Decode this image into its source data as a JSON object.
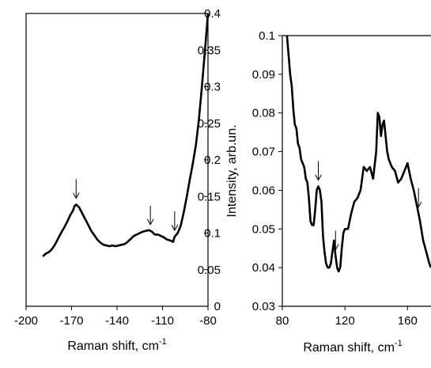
{
  "chart_data": [
    {
      "type": "line",
      "title": "",
      "xlabel": "Raman shift, cm",
      "xlabel_superscript": "-1",
      "ylabel": "",
      "xlim": [
        -200,
        -80
      ],
      "ylim": [
        0,
        0.4
      ],
      "x_tick_labels": [
        "-200",
        "-170",
        "-140",
        "-110",
        "-80"
      ],
      "x_tick_values": [
        -200,
        -170,
        -140,
        -110,
        -80
      ],
      "y_tick_labels": [
        "0",
        "0.05",
        "0.1",
        "0.15",
        "0.2",
        "0.25",
        "0.3",
        "0.35",
        "0.4"
      ],
      "y_tick_values": [
        0,
        0.05,
        0.1,
        0.15,
        0.2,
        0.25,
        0.3,
        0.35,
        0.4
      ],
      "y_axis_side": "right",
      "grid": false,
      "series": [
        {
          "x": [
            -189,
            -187,
            -185,
            -183,
            -181,
            -179,
            -177,
            -175,
            -173,
            -171,
            -169,
            -168,
            -167,
            -165,
            -163,
            -161,
            -159,
            -157,
            -155,
            -153,
            -151,
            -149,
            -147,
            -145,
            -143,
            -141,
            -139,
            -137,
            -135,
            -133,
            -131,
            -129,
            -127,
            -125,
            -123,
            -121,
            -119,
            -117,
            -115,
            -113,
            -111,
            -109,
            -107,
            -105,
            -103,
            -102,
            -100,
            -98,
            -96,
            -94,
            -92,
            -90,
            -88,
            -86,
            -84,
            -82,
            -80
          ],
          "y": [
            0.068,
            0.072,
            0.074,
            0.078,
            0.084,
            0.092,
            0.1,
            0.107,
            0.115,
            0.124,
            0.131,
            0.137,
            0.139,
            0.135,
            0.127,
            0.119,
            0.111,
            0.103,
            0.097,
            0.091,
            0.087,
            0.084,
            0.083,
            0.082,
            0.083,
            0.082,
            0.083,
            0.084,
            0.085,
            0.088,
            0.092,
            0.096,
            0.098,
            0.1,
            0.102,
            0.103,
            0.104,
            0.102,
            0.098,
            0.098,
            0.096,
            0.094,
            0.091,
            0.09,
            0.088,
            0.095,
            0.1,
            0.11,
            0.128,
            0.15,
            0.173,
            0.195,
            0.22,
            0.255,
            0.3,
            0.35,
            0.4
          ]
        }
      ],
      "arrows_at_x": [
        -167,
        -118,
        -102
      ]
    },
    {
      "type": "line",
      "title": "",
      "xlabel": "Raman shift, cm",
      "xlabel_superscript": "-1",
      "ylabel": "Intensity, arb.un.",
      "xlim": [
        80,
        175
      ],
      "ylim": [
        0.03,
        0.1
      ],
      "x_tick_labels": [
        "80",
        "120",
        "160"
      ],
      "x_tick_values": [
        80,
        120,
        160
      ],
      "y_tick_labels": [
        "0.03",
        "0.04",
        "0.05",
        "0.06",
        "0.07",
        "0.08",
        "0.09",
        "0.1"
      ],
      "y_tick_values": [
        0.03,
        0.04,
        0.05,
        0.06,
        0.07,
        0.08,
        0.09,
        0.1
      ],
      "y_axis_side": "left",
      "grid": false,
      "series": [
        {
          "x": [
            83,
            84,
            85,
            86,
            87,
            88,
            89,
            90,
            91,
            92,
            93,
            94,
            95,
            96,
            97,
            98,
            99,
            100,
            101,
            102,
            103,
            104,
            105,
            106,
            107,
            108,
            109,
            110,
            111,
            112,
            113,
            114,
            115,
            116,
            117,
            118,
            119,
            120,
            122,
            124,
            126,
            128,
            130,
            132,
            134,
            136,
            138,
            140,
            141,
            142,
            143,
            144,
            145,
            146,
            147,
            148,
            150,
            152,
            154,
            156,
            158,
            160,
            162,
            164,
            166,
            168,
            170,
            172,
            174,
            175
          ],
          "y": [
            0.1,
            0.095,
            0.09,
            0.087,
            0.081,
            0.077,
            0.076,
            0.072,
            0.071,
            0.068,
            0.067,
            0.066,
            0.063,
            0.062,
            0.058,
            0.052,
            0.051,
            0.051,
            0.055,
            0.06,
            0.061,
            0.06,
            0.057,
            0.048,
            0.044,
            0.041,
            0.04,
            0.04,
            0.041,
            0.044,
            0.047,
            0.043,
            0.04,
            0.039,
            0.04,
            0.045,
            0.049,
            0.05,
            0.05,
            0.054,
            0.057,
            0.058,
            0.06,
            0.066,
            0.065,
            0.066,
            0.063,
            0.07,
            0.08,
            0.079,
            0.074,
            0.077,
            0.078,
            0.074,
            0.07,
            0.068,
            0.066,
            0.065,
            0.062,
            0.063,
            0.065,
            0.067,
            0.063,
            0.06,
            0.056,
            0.052,
            0.047,
            0.044,
            0.041,
            0.04
          ]
        }
      ],
      "arrows_at_x": [
        103,
        114,
        167
      ]
    }
  ]
}
